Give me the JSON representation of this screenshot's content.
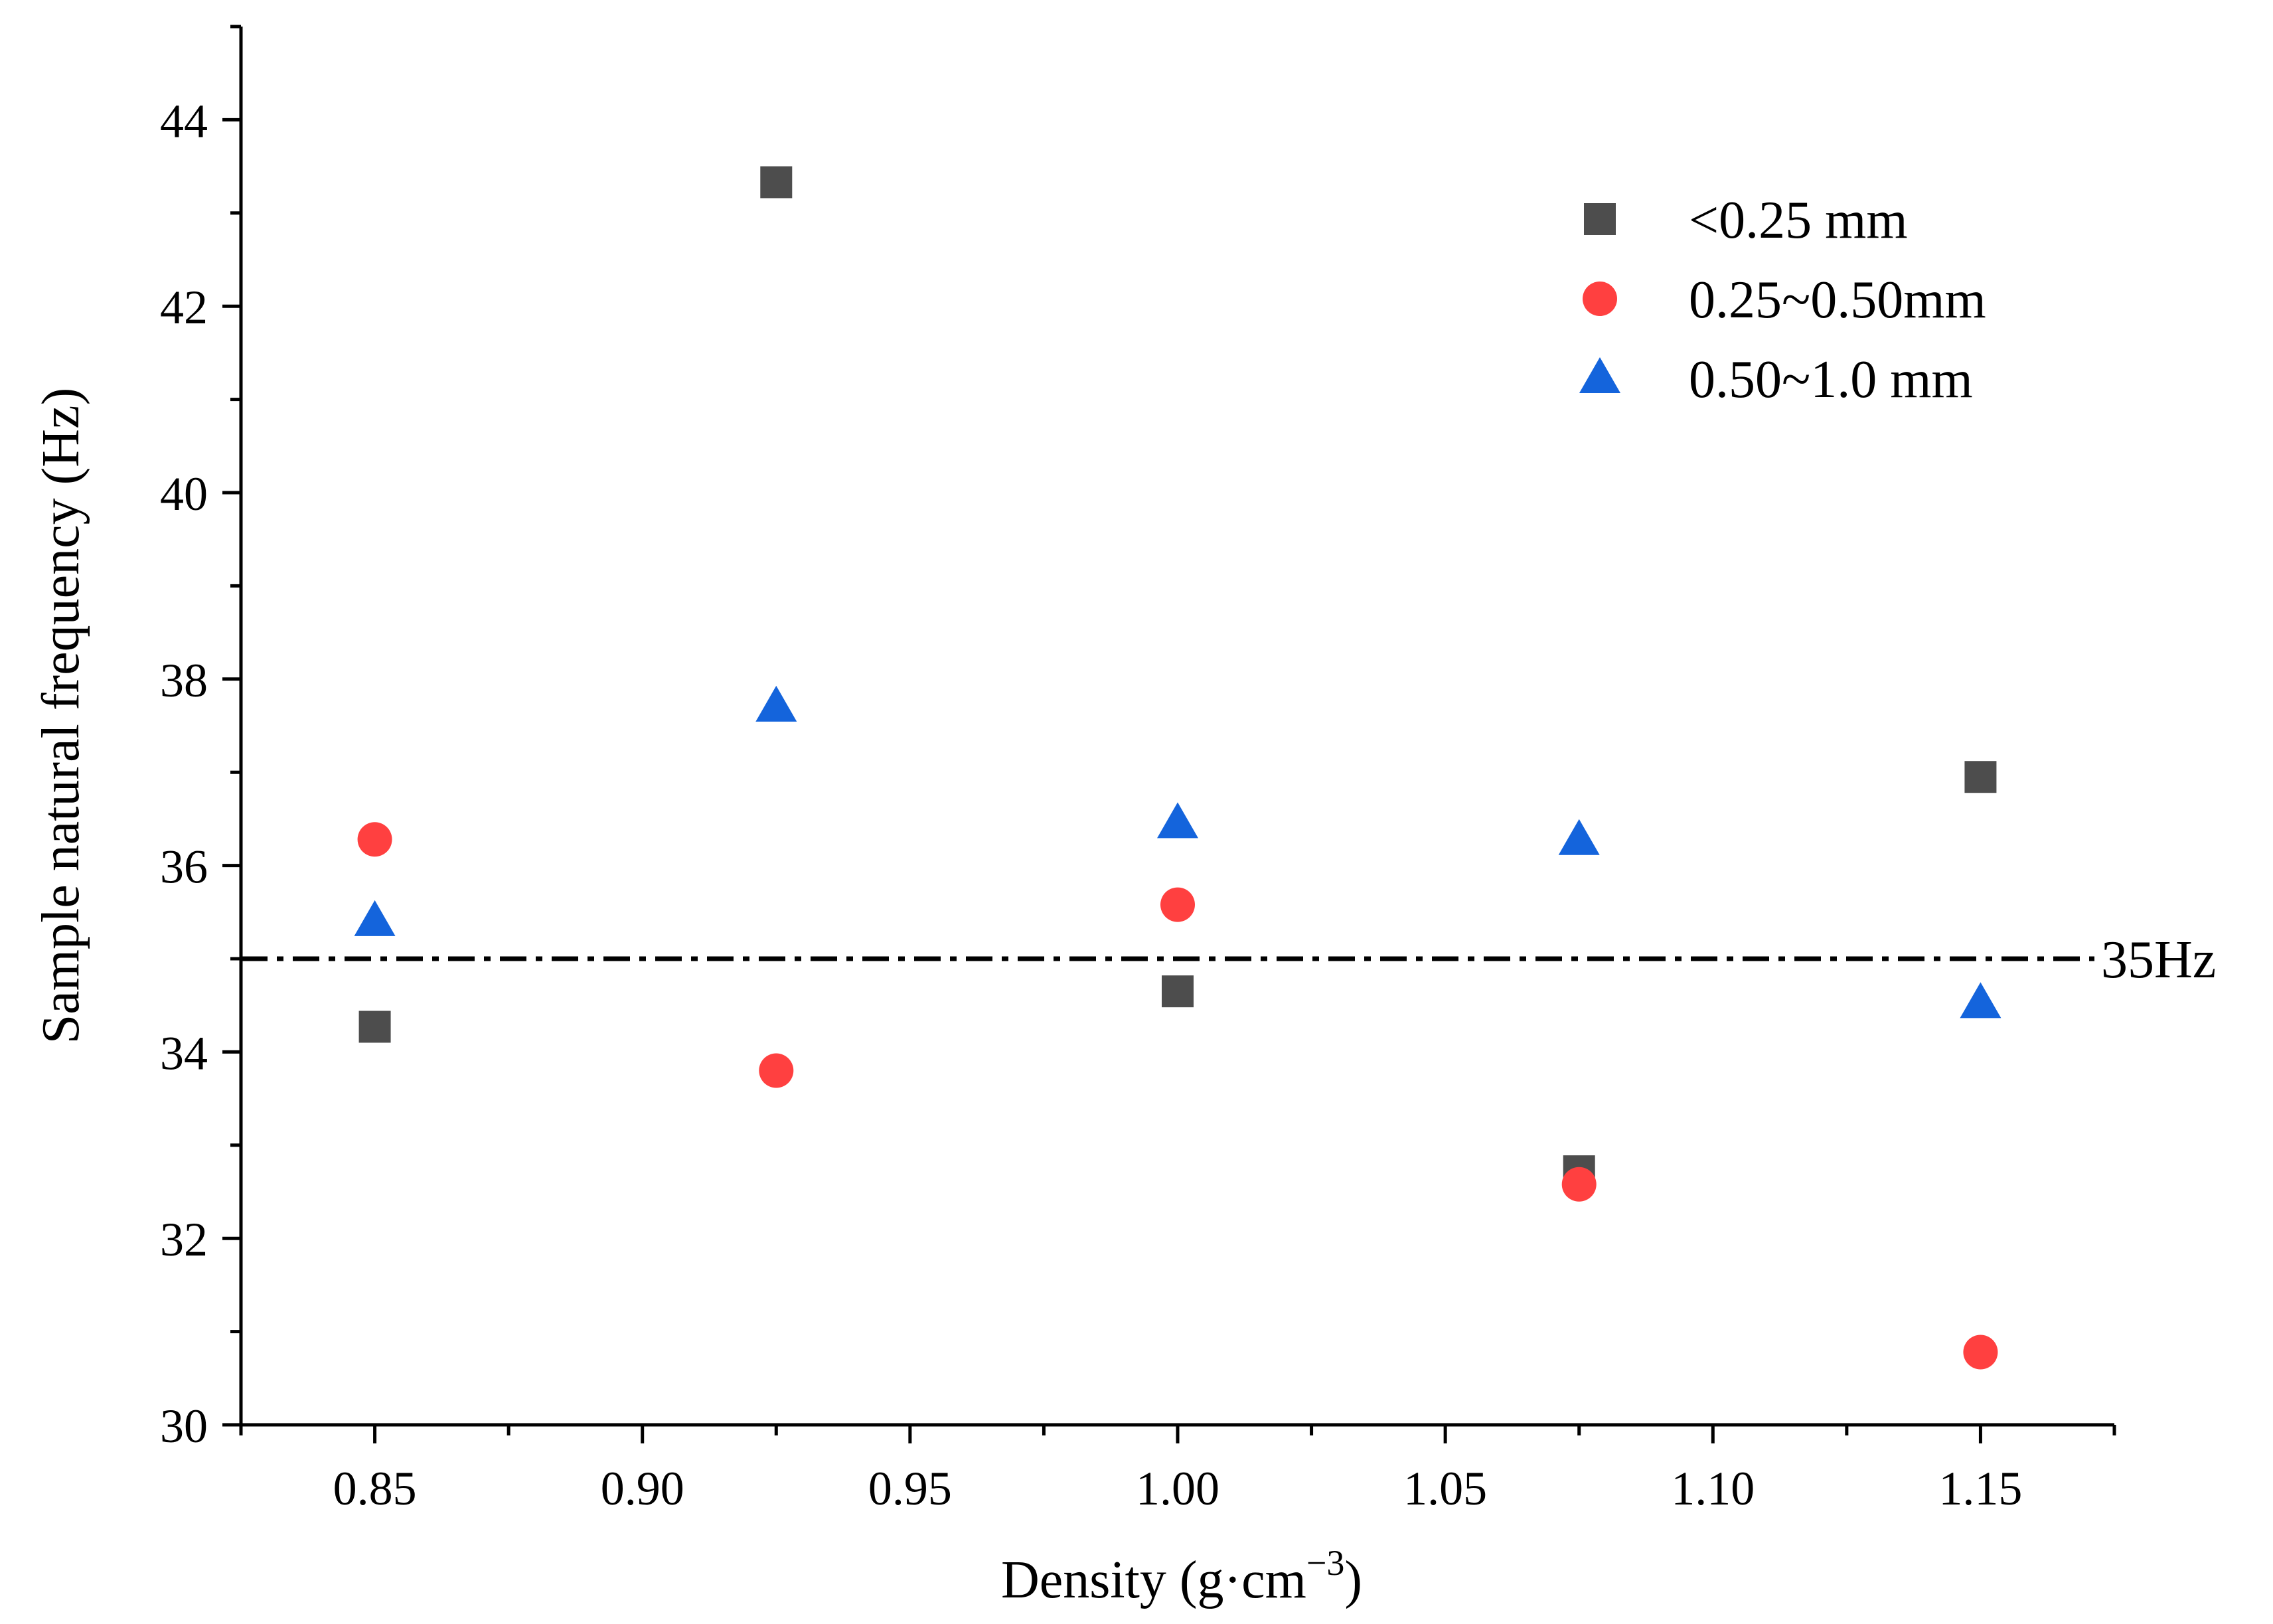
{
  "chart_data": {
    "type": "scatter",
    "title": "",
    "xlabel": "Density (g·cm",
    "xlabel_sup": "−3",
    "xlabel_suffix": ")",
    "ylabel": "Sample natural frequency (Hz)",
    "xlim": [
      0.825,
      1.175
    ],
    "ylim": [
      30,
      45
    ],
    "xticks": [
      0.85,
      0.9,
      0.95,
      1.0,
      1.05,
      1.1,
      1.15
    ],
    "xtick_labels": [
      "0.85",
      "0.90",
      "0.95",
      "1.00",
      "1.05",
      "1.10",
      "1.15"
    ],
    "yticks": [
      30,
      32,
      34,
      36,
      38,
      40,
      42,
      44
    ],
    "ytick_labels": [
      "30",
      "32",
      "34",
      "36",
      "38",
      "40",
      "42",
      "44"
    ],
    "grid": false,
    "legend_position": "top-right",
    "series": [
      {
        "name": "<0.25 mm",
        "marker": "square",
        "color": "#4d4d4d",
        "x": [
          0.85,
          0.925,
          1.0,
          1.075,
          1.15
        ],
        "y": [
          34.27,
          43.33,
          34.65,
          32.72,
          36.95
        ]
      },
      {
        "name": "0.25~0.50mm",
        "marker": "circle",
        "color": "#ff4040",
        "x": [
          0.85,
          0.925,
          1.0,
          1.075,
          1.15
        ],
        "y": [
          36.28,
          33.8,
          35.58,
          32.58,
          30.78
        ]
      },
      {
        "name": "0.50~1.0 mm",
        "marker": "triangle",
        "color": "#1464dc",
        "x": [
          0.85,
          0.925,
          1.0,
          1.075,
          1.15
        ],
        "y": [
          35.4,
          37.7,
          36.45,
          36.27,
          34.52
        ]
      }
    ],
    "reference_line": {
      "y": 35,
      "style": "dash-dot",
      "label": "35Hz"
    }
  }
}
